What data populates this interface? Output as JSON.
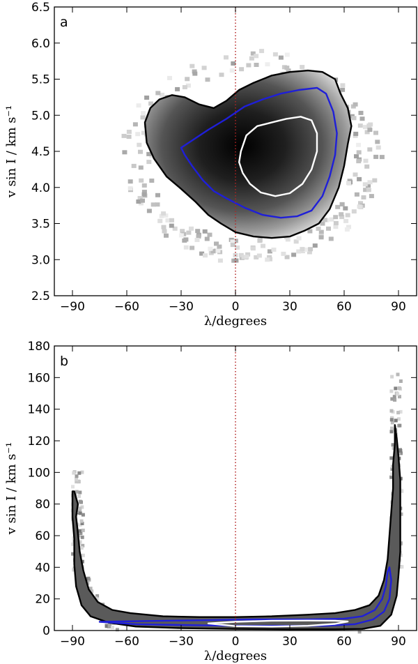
{
  "chart_data": [
    {
      "type": "heatmap",
      "panel_label": "a",
      "xlabel": "λ/degrees",
      "ylabel": "v sin I / km s⁻¹",
      "xlim": [
        -100,
        100
      ],
      "ylim": [
        2.5,
        6.5
      ],
      "xticks": [
        -90,
        -60,
        -30,
        0,
        30,
        60,
        90
      ],
      "yticks": [
        2.5,
        3.0,
        3.5,
        4.0,
        4.5,
        5.0,
        5.5,
        6.0,
        6.5
      ],
      "xtick_labels": [
        "−90",
        "−60",
        "−30",
        "0",
        "30",
        "60",
        "90"
      ],
      "ytick_labels": [
        "2.5",
        "3.0",
        "3.5",
        "4.0",
        "4.5",
        "5.0",
        "5.5",
        "6.0",
        "6.5"
      ],
      "reference_line_x": 0,
      "density_peak": {
        "x": 18,
        "y": 4.35
      },
      "contours": [
        {
          "level": "outer",
          "color": "#000000",
          "points": [
            [
              -50,
              4.9
            ],
            [
              -47,
              5.1
            ],
            [
              -42,
              5.22
            ],
            [
              -35,
              5.28
            ],
            [
              -28,
              5.25
            ],
            [
              -20,
              5.15
            ],
            [
              -12,
              5.1
            ],
            [
              -5,
              5.2
            ],
            [
              2,
              5.35
            ],
            [
              10,
              5.45
            ],
            [
              20,
              5.55
            ],
            [
              30,
              5.6
            ],
            [
              40,
              5.62
            ],
            [
              48,
              5.6
            ],
            [
              55,
              5.5
            ],
            [
              58,
              5.3
            ],
            [
              62,
              5.1
            ],
            [
              64,
              4.85
            ],
            [
              62,
              4.6
            ],
            [
              60,
              4.3
            ],
            [
              57,
              4.0
            ],
            [
              52,
              3.7
            ],
            [
              46,
              3.5
            ],
            [
              38,
              3.4
            ],
            [
              30,
              3.32
            ],
            [
              20,
              3.3
            ],
            [
              10,
              3.32
            ],
            [
              0,
              3.38
            ],
            [
              -8,
              3.5
            ],
            [
              -15,
              3.62
            ],
            [
              -22,
              3.8
            ],
            [
              -30,
              3.98
            ],
            [
              -38,
              4.15
            ],
            [
              -45,
              4.4
            ],
            [
              -49,
              4.62
            ],
            [
              -50,
              4.9
            ]
          ]
        },
        {
          "level": "middle",
          "color": "#1f1fd8",
          "points": [
            [
              -30,
              4.55
            ],
            [
              -24,
              4.65
            ],
            [
              -15,
              4.8
            ],
            [
              -5,
              4.95
            ],
            [
              5,
              5.12
            ],
            [
              15,
              5.22
            ],
            [
              25,
              5.3
            ],
            [
              35,
              5.35
            ],
            [
              45,
              5.38
            ],
            [
              50,
              5.3
            ],
            [
              54,
              5.05
            ],
            [
              56,
              4.75
            ],
            [
              55,
              4.45
            ],
            [
              52,
              4.15
            ],
            [
              48,
              3.88
            ],
            [
              42,
              3.68
            ],
            [
              34,
              3.6
            ],
            [
              25,
              3.58
            ],
            [
              15,
              3.62
            ],
            [
              5,
              3.72
            ],
            [
              -5,
              3.85
            ],
            [
              -12,
              3.95
            ],
            [
              -18,
              4.1
            ],
            [
              -24,
              4.3
            ],
            [
              -28,
              4.45
            ],
            [
              -30,
              4.55
            ]
          ]
        },
        {
          "level": "inner",
          "color": "#ffffff",
          "points": [
            [
              3,
              4.5
            ],
            [
              6,
              4.72
            ],
            [
              12,
              4.85
            ],
            [
              20,
              4.9
            ],
            [
              28,
              4.95
            ],
            [
              36,
              4.98
            ],
            [
              42,
              4.93
            ],
            [
              45,
              4.75
            ],
            [
              45,
              4.5
            ],
            [
              42,
              4.25
            ],
            [
              37,
              4.05
            ],
            [
              30,
              3.92
            ],
            [
              22,
              3.88
            ],
            [
              14,
              3.93
            ],
            [
              8,
              4.05
            ],
            [
              4,
              4.2
            ],
            [
              2,
              4.35
            ],
            [
              3,
              4.5
            ]
          ]
        }
      ]
    },
    {
      "type": "heatmap",
      "panel_label": "b",
      "xlabel": "λ/degrees",
      "ylabel": "v sin I / km s⁻¹",
      "xlim": [
        -100,
        100
      ],
      "ylim": [
        0,
        180
      ],
      "xticks": [
        -90,
        -60,
        -30,
        0,
        30,
        60,
        90
      ],
      "yticks": [
        0,
        20,
        40,
        60,
        80,
        100,
        120,
        140,
        160,
        180
      ],
      "xtick_labels": [
        "−90",
        "−60",
        "−30",
        "0",
        "30",
        "60",
        "90"
      ],
      "ytick_labels": [
        "0",
        "20",
        "40",
        "60",
        "80",
        "100",
        "120",
        "140",
        "160",
        "180"
      ],
      "reference_line_x": 0,
      "contours": [
        {
          "level": "outer",
          "color": "#000000",
          "points": [
            [
              -89,
              88
            ],
            [
              -87,
              80
            ],
            [
              -88,
              72
            ],
            [
              -87,
              62
            ],
            [
              -86,
              50
            ],
            [
              -84,
              38
            ],
            [
              -81,
              26
            ],
            [
              -76,
              18
            ],
            [
              -68,
              13
            ],
            [
              -58,
              11
            ],
            [
              -40,
              9
            ],
            [
              -20,
              8.5
            ],
            [
              0,
              8.5
            ],
            [
              20,
              9
            ],
            [
              40,
              10
            ],
            [
              55,
              11
            ],
            [
              66,
              13
            ],
            [
              74,
              16
            ],
            [
              79,
              22
            ],
            [
              82,
              32
            ],
            [
              84,
              45
            ],
            [
              85,
              60
            ],
            [
              86,
              75
            ],
            [
              87,
              90
            ],
            [
              87,
              105
            ],
            [
              88,
              118
            ],
            [
              88,
              130
            ],
            [
              89,
              122
            ],
            [
              90,
              110
            ],
            [
              91,
              95
            ],
            [
              91,
              80
            ],
            [
              91,
              65
            ],
            [
              91,
              50
            ],
            [
              90,
              35
            ],
            [
              89,
              22
            ],
            [
              86,
              10
            ],
            [
              80,
              3
            ],
            [
              70,
              1
            ],
            [
              55,
              0.8
            ],
            [
              30,
              0.8
            ],
            [
              0,
              1
            ],
            [
              -30,
              1.5
            ],
            [
              -55,
              2.5
            ],
            [
              -70,
              5
            ],
            [
              -80,
              9
            ],
            [
              -85,
              16
            ],
            [
              -88,
              28
            ],
            [
              -89,
              42
            ],
            [
              -89,
              58
            ],
            [
              -90,
              72
            ],
            [
              -90,
              88
            ]
          ]
        },
        {
          "level": "middle",
          "color": "#1f1fd8",
          "points": [
            [
              -75,
              5.5
            ],
            [
              -50,
              6
            ],
            [
              -20,
              6.5
            ],
            [
              10,
              7
            ],
            [
              40,
              7
            ],
            [
              60,
              7.5
            ],
            [
              70,
              9
            ],
            [
              77,
              13
            ],
            [
              81,
              20
            ],
            [
              83,
              28
            ],
            [
              84,
              37
            ],
            [
              85,
              40
            ],
            [
              86,
              32
            ],
            [
              85,
              20
            ],
            [
              82,
              12
            ],
            [
              76,
              7
            ],
            [
              66,
              4
            ],
            [
              50,
              3
            ],
            [
              30,
              3
            ],
            [
              0,
              3
            ],
            [
              -30,
              3.5
            ],
            [
              -55,
              4
            ],
            [
              -75,
              5.5
            ]
          ]
        },
        {
          "level": "inner",
          "color": "#ffffff",
          "points": [
            [
              -15,
              4.5
            ],
            [
              0,
              5.5
            ],
            [
              20,
              6.2
            ],
            [
              40,
              6.3
            ],
            [
              55,
              6.2
            ],
            [
              62,
              5.7
            ],
            [
              55,
              4.2
            ],
            [
              40,
              3.0
            ],
            [
              20,
              2.5
            ],
            [
              0,
              2.8
            ],
            [
              -15,
              4.5
            ]
          ]
        }
      ]
    }
  ]
}
